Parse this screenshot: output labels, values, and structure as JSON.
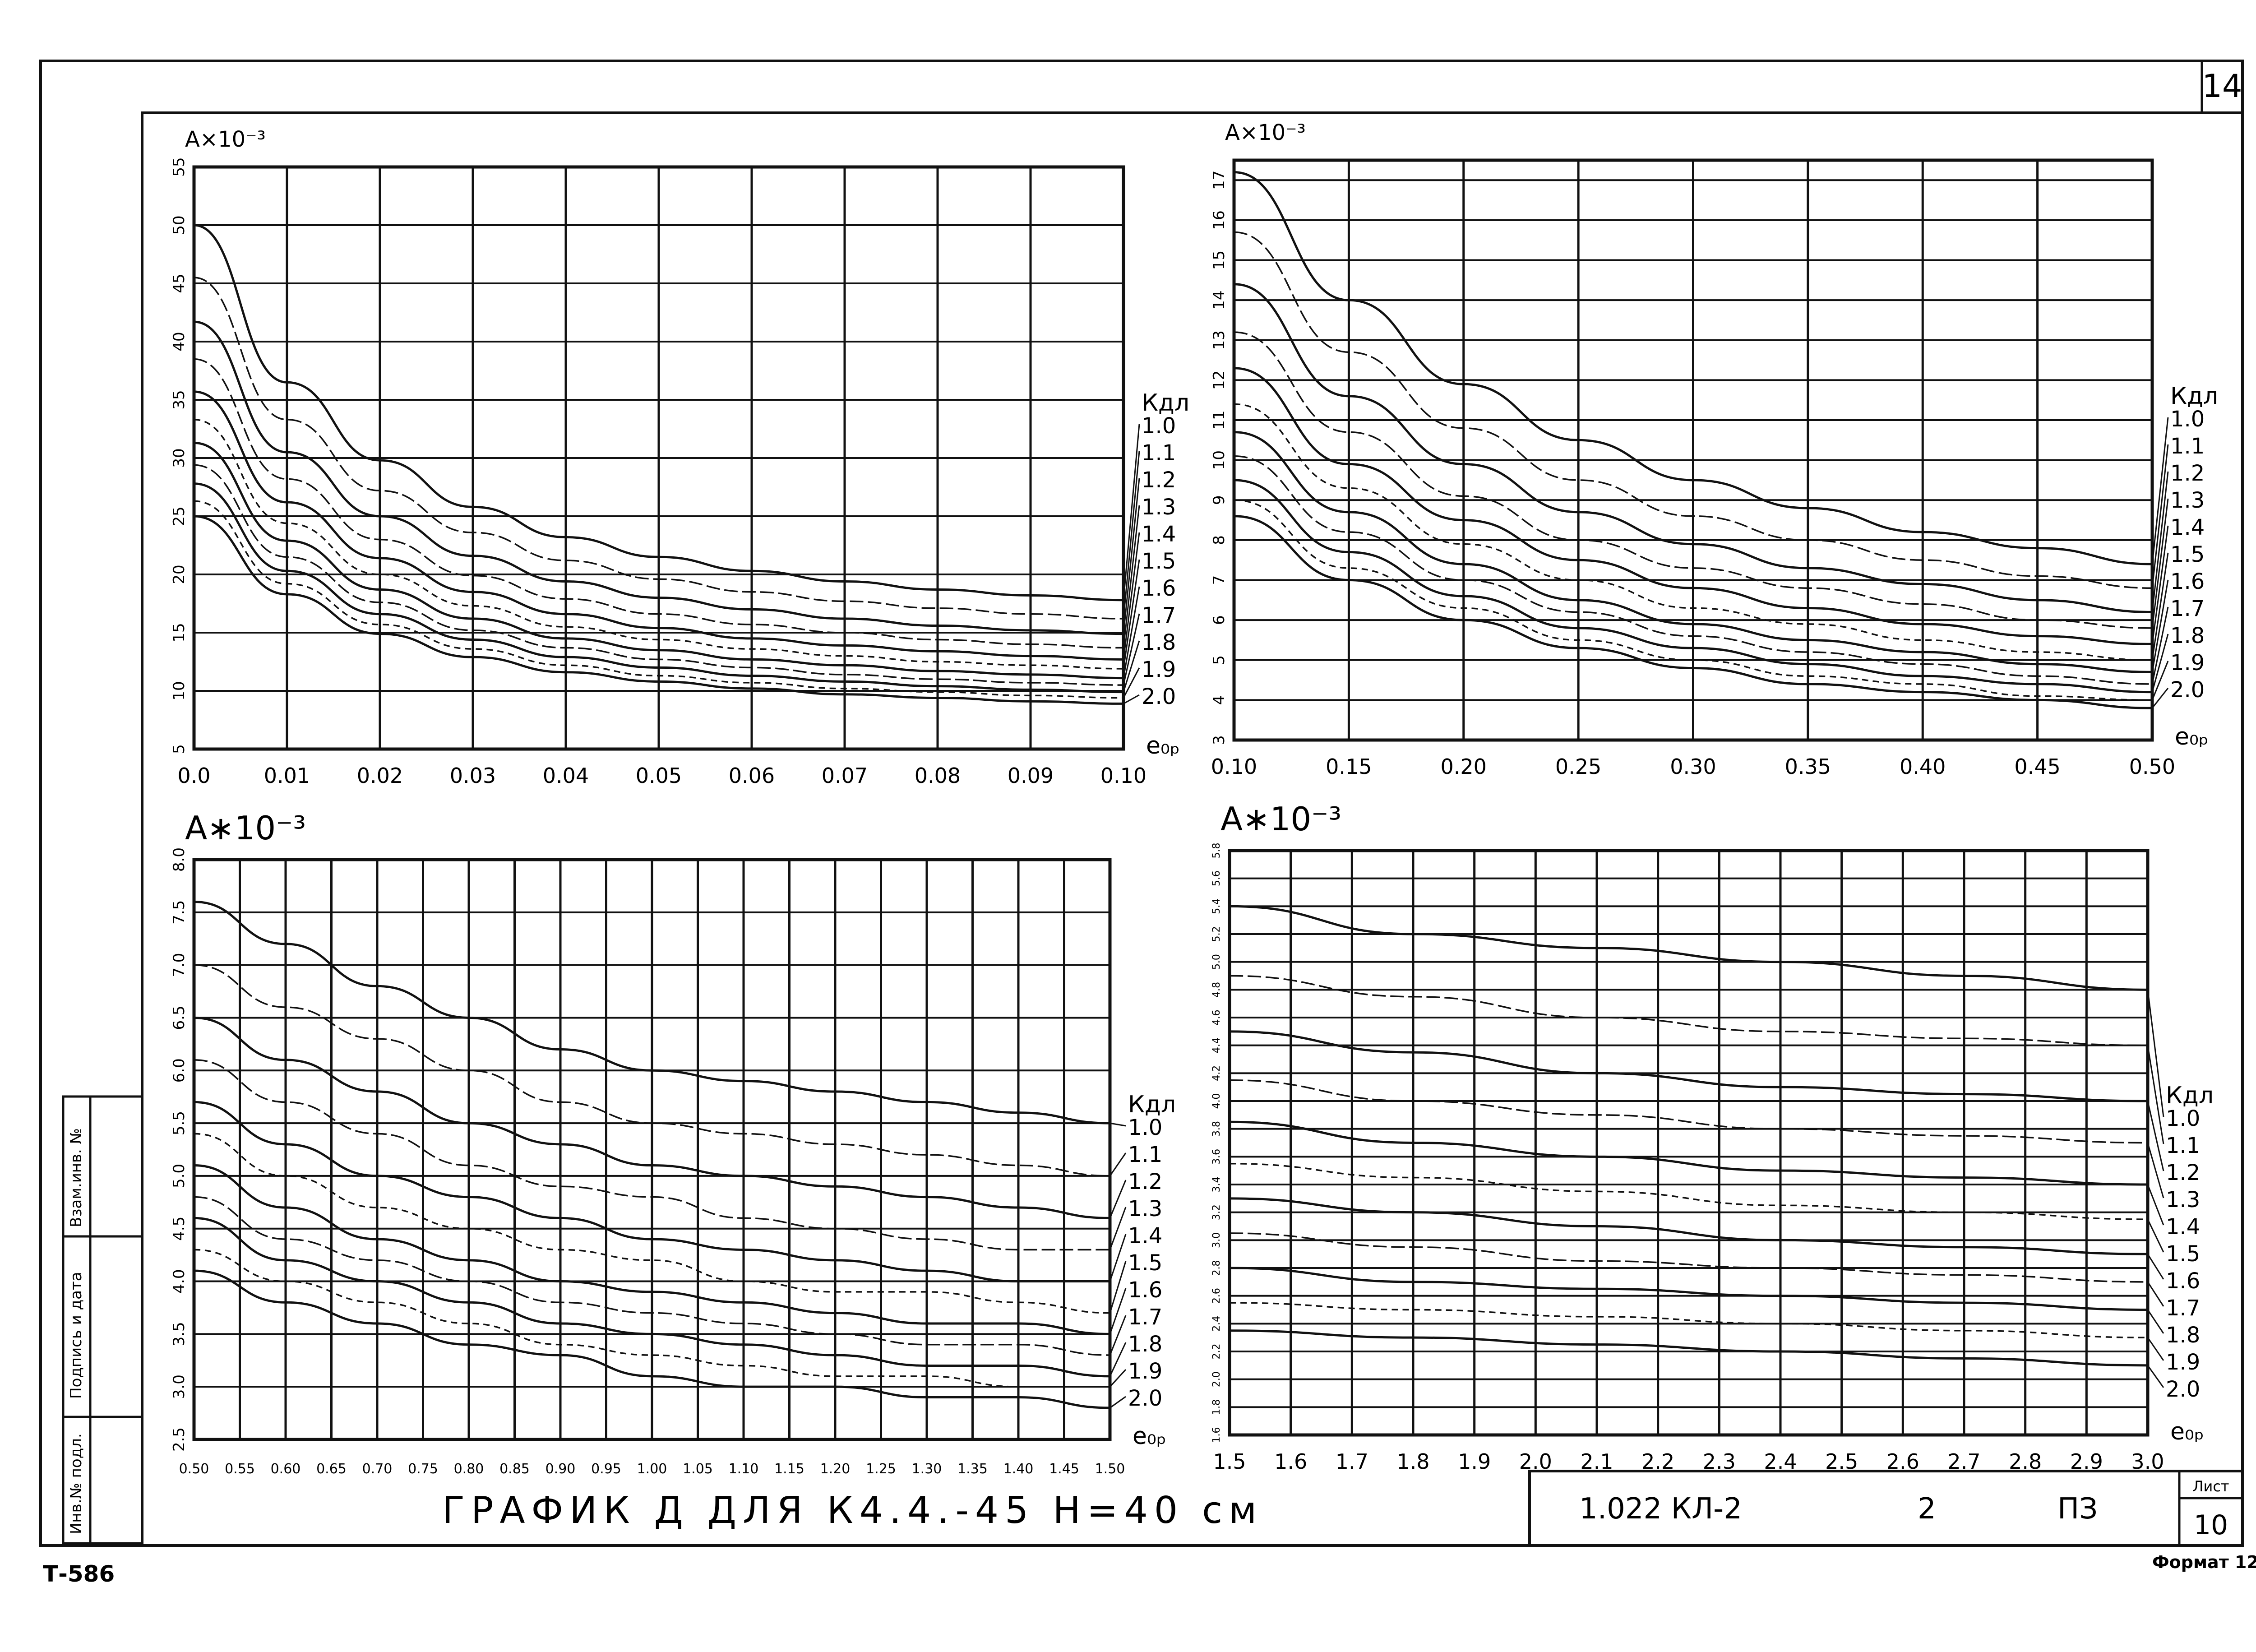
{
  "sheet": {
    "page_number": "14",
    "code": "Т-586",
    "format_label": "Формат 12",
    "caption": "ГРАФИК  Д ДЛЯ  К4.4.-45     Н=40 см",
    "side_stamps": [
      "Инв.№ подл.",
      "Подпись и дата",
      "Взам.инв. №"
    ],
    "title_block": {
      "designation": "1.022   КЛ-2",
      "number": "2",
      "stage": "ПЗ",
      "sheet_label": "Лист",
      "sheet_number": "10"
    }
  },
  "chart_data": [
    {
      "type": "line",
      "title": "A×10⁻³",
      "xlabel": "e₀ₚ",
      "legend_title": "Кдл",
      "xlim": [
        0.0,
        0.1
      ],
      "ylim": [
        5,
        55
      ],
      "x_ticks": [
        "0.0",
        "0.01",
        "0.02",
        "0.03",
        "0.04",
        "0.05",
        "0.06",
        "0.07",
        "0.08",
        "0.09",
        "0.10"
      ],
      "y_ticks": [
        "5",
        "10",
        "15",
        "20",
        "25",
        "30",
        "35",
        "40",
        "45",
        "50",
        "55"
      ],
      "x": [
        0.0,
        0.01,
        0.02,
        0.03,
        0.04,
        0.05,
        0.06,
        0.07,
        0.08,
        0.09,
        0.1
      ],
      "series": [
        {
          "name": "1.0",
          "values": [
            50,
            36.5,
            29.8,
            25.8,
            23.2,
            21.5,
            20.3,
            19.4,
            18.7,
            18.2,
            17.8
          ]
        },
        {
          "name": "1.1",
          "values": [
            45.5,
            33.3,
            27.2,
            23.6,
            21.2,
            19.6,
            18.5,
            17.7,
            17.1,
            16.6,
            16.2
          ]
        },
        {
          "name": "1.2",
          "values": [
            41.7,
            30.5,
            25.0,
            21.6,
            19.4,
            18.0,
            17.0,
            16.2,
            15.6,
            15.2,
            14.9
          ]
        },
        {
          "name": "1.3",
          "values": [
            38.5,
            28.2,
            23.0,
            19.9,
            17.9,
            16.6,
            15.7,
            15.0,
            14.4,
            14.0,
            13.7
          ]
        },
        {
          "name": "1.4",
          "values": [
            35.7,
            26.2,
            21.4,
            18.5,
            16.6,
            15.4,
            14.5,
            13.9,
            13.4,
            13.0,
            12.7
          ]
        },
        {
          "name": "1.5",
          "values": [
            33.3,
            24.4,
            20.0,
            17.3,
            15.5,
            14.4,
            13.6,
            13.0,
            12.5,
            12.2,
            11.9
          ]
        },
        {
          "name": "1.6",
          "values": [
            31.3,
            22.9,
            18.7,
            16.2,
            14.5,
            13.5,
            12.7,
            12.2,
            11.7,
            11.4,
            11.1
          ]
        },
        {
          "name": "1.7",
          "values": [
            29.4,
            21.5,
            17.6,
            15.2,
            13.7,
            12.7,
            12.0,
            11.4,
            11.0,
            10.7,
            10.5
          ]
        },
        {
          "name": "1.8",
          "values": [
            27.8,
            20.3,
            16.6,
            14.4,
            12.9,
            12.0,
            11.3,
            10.8,
            10.4,
            10.1,
            9.9
          ]
        },
        {
          "name": "1.9",
          "values": [
            26.3,
            19.2,
            15.7,
            13.6,
            12.2,
            11.3,
            10.7,
            10.2,
            9.9,
            9.6,
            9.4
          ]
        },
        {
          "name": "2.0",
          "values": [
            25.0,
            18.3,
            14.9,
            12.9,
            11.6,
            10.8,
            10.2,
            9.7,
            9.4,
            9.1,
            8.9
          ]
        }
      ]
    },
    {
      "type": "line",
      "title": "A×10⁻³",
      "xlabel": "e₀ₚ",
      "legend_title": "Кдл",
      "xlim": [
        0.1,
        0.5
      ],
      "ylim": [
        3,
        17.5
      ],
      "x_ticks": [
        "0.10",
        "0.15",
        "0.20",
        "0.25",
        "0.30",
        "0.35",
        "0.40",
        "0.45",
        "0.50"
      ],
      "y_ticks": [
        "3",
        "4",
        "5",
        "6",
        "7",
        "8",
        "9",
        "10",
        "11",
        "12",
        "13",
        "14",
        "15",
        "16",
        "17"
      ],
      "x": [
        0.1,
        0.15,
        0.2,
        0.25,
        0.3,
        0.35,
        0.4,
        0.45,
        0.5
      ],
      "series": [
        {
          "name": "1.0",
          "values": [
            17.2,
            14.0,
            11.9,
            10.5,
            9.5,
            8.8,
            8.2,
            7.8,
            7.4
          ]
        },
        {
          "name": "1.1",
          "values": [
            15.7,
            12.7,
            10.8,
            9.5,
            8.6,
            8.0,
            7.5,
            7.1,
            6.8
          ]
        },
        {
          "name": "1.2",
          "values": [
            14.4,
            11.6,
            9.9,
            8.7,
            7.9,
            7.3,
            6.9,
            6.5,
            6.2
          ]
        },
        {
          "name": "1.3",
          "values": [
            13.2,
            10.7,
            9.1,
            8.0,
            7.3,
            6.8,
            6.4,
            6.0,
            5.8
          ]
        },
        {
          "name": "1.4",
          "values": [
            12.3,
            9.9,
            8.5,
            7.5,
            6.8,
            6.3,
            5.9,
            5.6,
            5.4
          ]
        },
        {
          "name": "1.5",
          "values": [
            11.4,
            9.3,
            7.9,
            7.0,
            6.3,
            5.9,
            5.5,
            5.2,
            5.0
          ]
        },
        {
          "name": "1.6",
          "values": [
            10.7,
            8.7,
            7.4,
            6.5,
            5.9,
            5.5,
            5.2,
            4.9,
            4.7
          ]
        },
        {
          "name": "1.7",
          "values": [
            10.1,
            8.2,
            7.0,
            6.2,
            5.6,
            5.2,
            4.9,
            4.6,
            4.4
          ]
        },
        {
          "name": "1.8",
          "values": [
            9.5,
            7.7,
            6.6,
            5.8,
            5.3,
            4.9,
            4.6,
            4.4,
            4.2
          ]
        },
        {
          "name": "1.9",
          "values": [
            9.0,
            7.3,
            6.3,
            5.5,
            5.0,
            4.6,
            4.4,
            4.1,
            4.0
          ]
        },
        {
          "name": "2.0",
          "values": [
            8.6,
            7.0,
            6.0,
            5.3,
            4.8,
            4.4,
            4.2,
            4.0,
            3.8
          ]
        }
      ]
    },
    {
      "type": "line",
      "title": "A∗10⁻³",
      "xlabel": "e₀ₚ",
      "legend_title": "Кдл",
      "xlim": [
        0.5,
        1.5
      ],
      "ylim": [
        2.5,
        8.0
      ],
      "x_ticks": [
        "0.50",
        "0.55",
        "0.60",
        "0.65",
        "0.70",
        "0.75",
        "0.80",
        "0.85",
        "0.90",
        "0.95",
        "1.00",
        "1.05",
        "1.10",
        "1.15",
        "1.20",
        "1.25",
        "1.30",
        "1.35",
        "1.40",
        "1.45",
        "1.50"
      ],
      "y_ticks": [
        "2.5",
        "3.0",
        "3.5",
        "4.0",
        "4.5",
        "5.0",
        "5.5",
        "6.0",
        "6.5",
        "7.0",
        "7.5",
        "8.0"
      ],
      "x": [
        0.5,
        0.6,
        0.7,
        0.8,
        0.9,
        1.0,
        1.1,
        1.2,
        1.3,
        1.4,
        1.5
      ],
      "series": [
        {
          "name": "1.0",
          "values": [
            7.6,
            7.2,
            6.8,
            6.5,
            6.2,
            6.0,
            5.9,
            5.8,
            5.7,
            5.6,
            5.5
          ]
        },
        {
          "name": "1.1",
          "values": [
            7.0,
            6.6,
            6.3,
            6.0,
            5.7,
            5.5,
            5.4,
            5.3,
            5.2,
            5.1,
            5.0
          ]
        },
        {
          "name": "1.2",
          "values": [
            6.5,
            6.1,
            5.8,
            5.5,
            5.3,
            5.1,
            5.0,
            4.9,
            4.8,
            4.7,
            4.6
          ]
        },
        {
          "name": "1.3",
          "values": [
            6.1,
            5.7,
            5.4,
            5.1,
            4.9,
            4.8,
            4.6,
            4.5,
            4.4,
            4.3,
            4.3
          ]
        },
        {
          "name": "1.4",
          "values": [
            5.7,
            5.3,
            5.0,
            4.8,
            4.6,
            4.4,
            4.3,
            4.2,
            4.1,
            4.0,
            4.0
          ]
        },
        {
          "name": "1.5",
          "values": [
            5.4,
            5.0,
            4.7,
            4.5,
            4.3,
            4.2,
            4.0,
            3.9,
            3.9,
            3.8,
            3.7
          ]
        },
        {
          "name": "1.6",
          "values": [
            5.1,
            4.7,
            4.4,
            4.2,
            4.0,
            3.9,
            3.8,
            3.7,
            3.6,
            3.6,
            3.5
          ]
        },
        {
          "name": "1.7",
          "values": [
            4.8,
            4.4,
            4.2,
            4.0,
            3.8,
            3.7,
            3.6,
            3.5,
            3.4,
            3.4,
            3.3
          ]
        },
        {
          "name": "1.8",
          "values": [
            4.6,
            4.2,
            4.0,
            3.8,
            3.6,
            3.5,
            3.4,
            3.3,
            3.2,
            3.2,
            3.1
          ]
        },
        {
          "name": "1.9",
          "values": [
            4.3,
            4.0,
            3.8,
            3.6,
            3.4,
            3.3,
            3.2,
            3.1,
            3.1,
            3.0,
            3.0
          ]
        },
        {
          "name": "2.0",
          "values": [
            4.1,
            3.8,
            3.6,
            3.4,
            3.3,
            3.1,
            3.0,
            3.0,
            2.9,
            2.9,
            2.8
          ]
        }
      ]
    },
    {
      "type": "line",
      "title": "A∗10⁻³",
      "xlabel": "e₀ₚ",
      "legend_title": "Кдл",
      "xlim": [
        1.5,
        3.0
      ],
      "ylim": [
        1.6,
        5.8
      ],
      "x_ticks": [
        "1.5",
        "1.6",
        "1.7",
        "1.8",
        "1.9",
        "2.0",
        "2.1",
        "2.2",
        "2.3",
        "2.4",
        "2.5",
        "2.6",
        "2.7",
        "2.8",
        "2.9",
        "3.0"
      ],
      "y_ticks": [
        "1.6",
        "1.8",
        "2.0",
        "2.2",
        "2.4",
        "2.6",
        "2.8",
        "3.0",
        "3.2",
        "3.4",
        "3.6",
        "3.8",
        "4.0",
        "4.2",
        "4.4",
        "4.6",
        "4.8",
        "5.0",
        "5.2",
        "5.4",
        "5.6",
        "5.8"
      ],
      "x": [
        1.5,
        1.8,
        2.1,
        2.4,
        2.7,
        3.0
      ],
      "series": [
        {
          "name": "1.0",
          "values": [
            5.4,
            5.2,
            5.1,
            5.0,
            4.9,
            4.8
          ]
        },
        {
          "name": "1.1",
          "values": [
            4.9,
            4.75,
            4.6,
            4.5,
            4.45,
            4.4
          ]
        },
        {
          "name": "1.2",
          "values": [
            4.5,
            4.35,
            4.2,
            4.1,
            4.05,
            4.0
          ]
        },
        {
          "name": "1.3",
          "values": [
            4.15,
            4.0,
            3.9,
            3.8,
            3.75,
            3.7
          ]
        },
        {
          "name": "1.4",
          "values": [
            3.85,
            3.7,
            3.6,
            3.5,
            3.45,
            3.4
          ]
        },
        {
          "name": "1.5",
          "values": [
            3.55,
            3.45,
            3.35,
            3.25,
            3.2,
            3.15
          ]
        },
        {
          "name": "1.6",
          "values": [
            3.3,
            3.2,
            3.1,
            3.0,
            2.95,
            2.9
          ]
        },
        {
          "name": "1.7",
          "values": [
            3.05,
            2.95,
            2.85,
            2.8,
            2.75,
            2.7
          ]
        },
        {
          "name": "1.8",
          "values": [
            2.8,
            2.7,
            2.65,
            2.6,
            2.55,
            2.5
          ]
        },
        {
          "name": "1.9",
          "values": [
            2.55,
            2.5,
            2.45,
            2.4,
            2.35,
            2.3
          ]
        },
        {
          "name": "2.0",
          "values": [
            2.35,
            2.3,
            2.25,
            2.2,
            2.15,
            2.1
          ]
        }
      ]
    }
  ]
}
